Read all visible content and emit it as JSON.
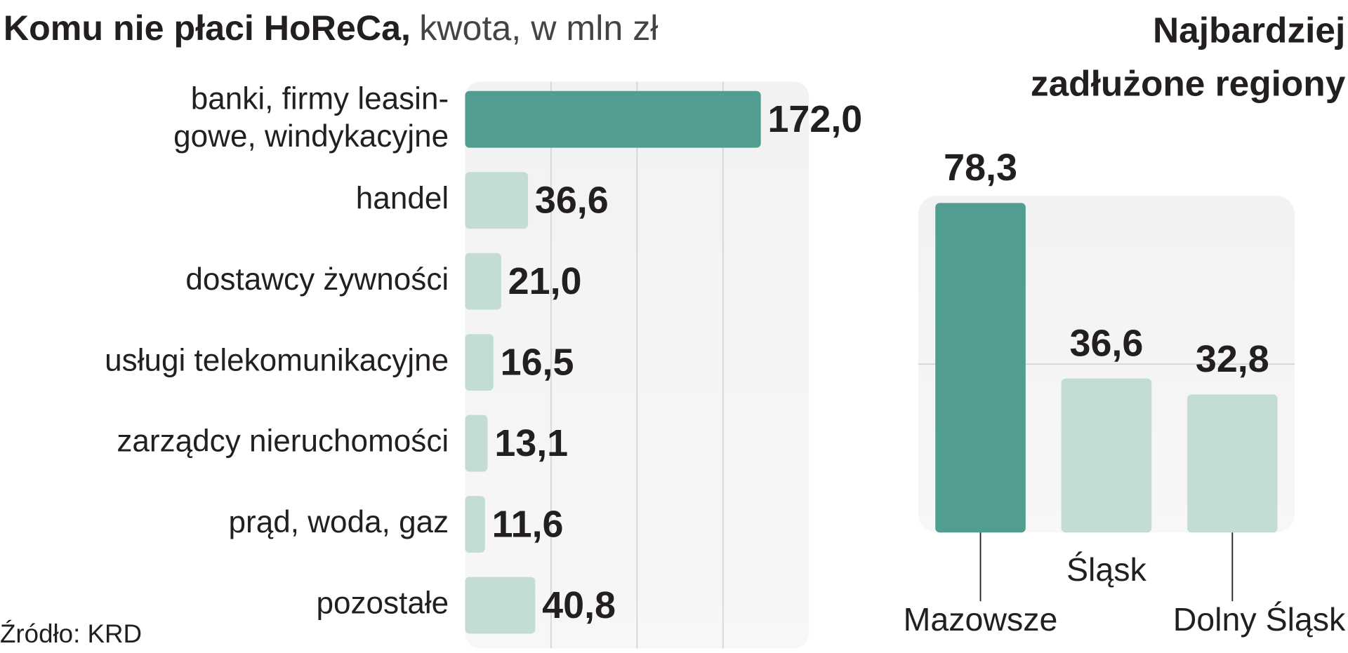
{
  "chart_data": [
    {
      "type": "hbar",
      "title": "Komu nie płaci HoReCa,",
      "subtitle": "kwota, w mln zł",
      "categories": [
        "banki, firmy leasin-\ngowe, windykacyjne",
        "handel",
        "dostawcy żywności",
        "usługi telekomunikacyjne",
        "zarządcy nieruchomości",
        "prąd, woda, gaz",
        "pozostałe"
      ],
      "values": [
        172.0,
        36.6,
        21.0,
        16.5,
        13.1,
        11.6,
        40.8
      ],
      "value_labels": [
        "172,0",
        "36,6",
        "21,0",
        "16,5",
        "13,1",
        "11,6",
        "40,8"
      ],
      "colors": [
        "#529d91",
        "#c3ddd6",
        "#c3ddd6",
        "#c3ddd6",
        "#c3ddd6",
        "#c3ddd6",
        "#c3ddd6"
      ],
      "xlim": [
        0,
        200
      ],
      "xticks": [
        50,
        100,
        150
      ],
      "grid": true,
      "note": "Źródło: KRD"
    },
    {
      "type": "bar",
      "title": "Najbardziej\nzadłużone regiony",
      "categories": [
        "Mazowsze",
        "Śląsk",
        "Dolny Śląsk"
      ],
      "values": [
        78.3,
        36.6,
        32.8
      ],
      "value_labels": [
        "78,3",
        "36,6",
        "32,8"
      ],
      "colors": [
        "#529d91",
        "#c3ddd6",
        "#c3ddd6"
      ],
      "ylim": [
        0,
        80
      ],
      "yticks": [
        40
      ],
      "grid": true
    }
  ]
}
